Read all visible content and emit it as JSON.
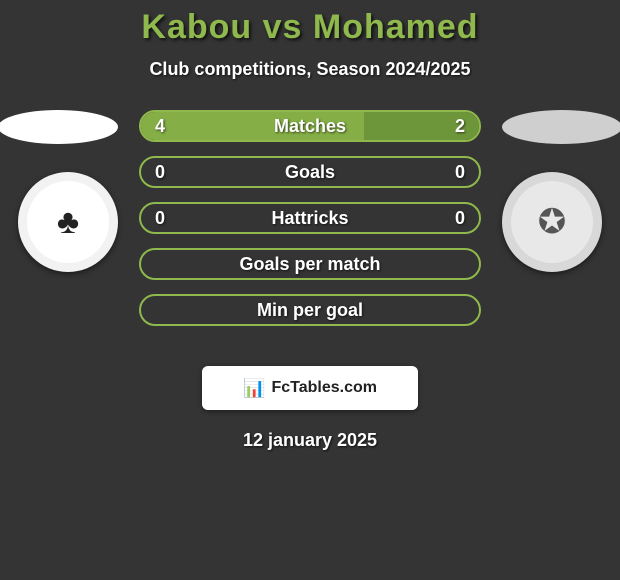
{
  "title": "Kabou vs Mohamed",
  "subtitle": "Club competitions, Season 2024/2025",
  "colors": {
    "page_bg": "#343434",
    "title": "#8fb84d",
    "subtitle": "#ffffff",
    "row_border": "#8fb84d",
    "row_text": "#ffffff",
    "fill_left": "#85ae46",
    "fill_right": "#6d963a",
    "ellipse_left": "#ffffff",
    "ellipse_right": "#cfcfcf",
    "badge_left_outer": "#f2f2f2",
    "badge_left_inner": "#ffffff",
    "badge_right_outer": "#d8d8d8",
    "badge_right_inner": "#e8e8e8",
    "watermark_text": "#222222"
  },
  "typography": {
    "title_size": 34,
    "title_weight": 800,
    "subtitle_size": 18,
    "subtitle_weight": 700,
    "row_value_size": 18,
    "row_value_weight": 700,
    "row_label_size": 18,
    "row_label_weight": 700,
    "watermark_size": 16,
    "watermark_weight": 700,
    "date_size": 18,
    "date_weight": 700
  },
  "badges": {
    "left_symbol": "♣",
    "right_symbol": "✪"
  },
  "rows": [
    {
      "left": "4",
      "label": "Matches",
      "right": "2",
      "left_pct": 66,
      "right_pct": 34
    },
    {
      "left": "0",
      "label": "Goals",
      "right": "0",
      "left_pct": 0,
      "right_pct": 0
    },
    {
      "left": "0",
      "label": "Hattricks",
      "right": "0",
      "left_pct": 0,
      "right_pct": 0
    },
    {
      "left": "",
      "label": "Goals per match",
      "right": "",
      "left_pct": 0,
      "right_pct": 0
    },
    {
      "left": "",
      "label": "Min per goal",
      "right": "",
      "left_pct": 0,
      "right_pct": 0
    }
  ],
  "watermark": {
    "icon": "📊",
    "text": "FcTables.com"
  },
  "date": "12 january 2025"
}
